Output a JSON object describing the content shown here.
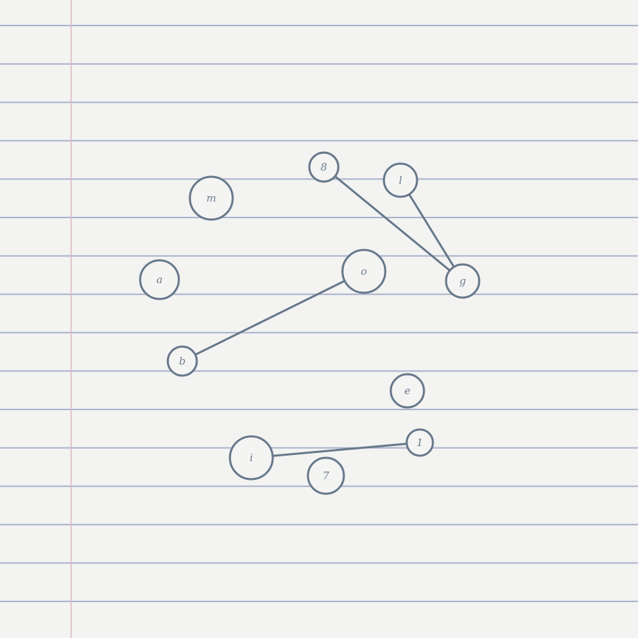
{
  "diagram": {
    "type": "undirected-graph",
    "background": "ruled-notebook-paper",
    "colors": {
      "paper": "#f3f3f2",
      "ruled_line": "#a9b2cc",
      "margin_line": "#d9b8bd",
      "node_stroke": "#67788a",
      "label": "#6b7c8e"
    },
    "nodes": [
      {
        "id": "8",
        "label": "8"
      },
      {
        "id": "l",
        "label": "l"
      },
      {
        "id": "m",
        "label": "m"
      },
      {
        "id": "a",
        "label": "a"
      },
      {
        "id": "o",
        "label": "o"
      },
      {
        "id": "g",
        "label": "g"
      },
      {
        "id": "b",
        "label": "b"
      },
      {
        "id": "e",
        "label": "e"
      },
      {
        "id": "1",
        "label": "1"
      },
      {
        "id": "i",
        "label": "i"
      },
      {
        "id": "7",
        "label": "7"
      }
    ],
    "edges": [
      {
        "from": "8",
        "to": "g"
      },
      {
        "from": "l",
        "to": "g"
      },
      {
        "from": "o",
        "to": "b"
      },
      {
        "from": "i",
        "to": "1"
      }
    ]
  }
}
